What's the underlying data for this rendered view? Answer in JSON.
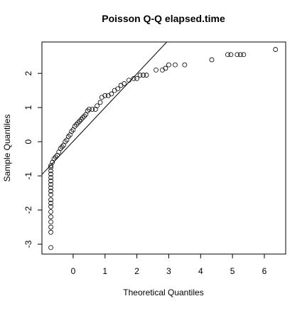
{
  "chart_data": {
    "type": "scatter",
    "title": "Poisson Q-Q elapsed.time",
    "x_label": "Theoretical Quantiles",
    "y_label": "Sample Quantiles",
    "xlim": [
      -0.98,
      6.67
    ],
    "ylim": [
      -3.29,
      2.92
    ],
    "xticks": [
      0,
      1,
      2,
      3,
      4,
      5,
      6
    ],
    "yticks": [
      -3,
      -2,
      -1,
      0,
      1,
      2
    ],
    "reference_line": {
      "intercept": 0.01,
      "slope": 0.99
    },
    "x": [
      -0.7,
      -0.7,
      -0.7,
      -0.7,
      -0.7,
      -0.7,
      -0.7,
      -0.7,
      -0.7,
      -0.7,
      -0.7,
      -0.7,
      -0.7,
      -0.7,
      -0.7,
      -0.7,
      -0.7,
      -0.7,
      -0.7,
      -0.65,
      -0.6,
      -0.55,
      -0.5,
      -0.45,
      -0.4,
      -0.35,
      -0.3,
      -0.25,
      -0.2,
      -0.15,
      -0.1,
      -0.05,
      0,
      0.05,
      0.1,
      0.15,
      0.2,
      0.25,
      0.3,
      0.35,
      0.4,
      0.45,
      0.5,
      0.6,
      0.7,
      0.75,
      0.85,
      0.9,
      1.0,
      1.1,
      1.2,
      1.3,
      1.4,
      1.5,
      1.6,
      1.75,
      1.9,
      2.0,
      2.1,
      2.2,
      2.3,
      2.6,
      2.8,
      2.9,
      3.0,
      3.2,
      3.5,
      4.35,
      4.85,
      4.95,
      5.15,
      5.25,
      5.35,
      6.35
    ],
    "values": [
      -3.1,
      -2.65,
      -2.5,
      -2.35,
      -2.2,
      -2.05,
      -1.9,
      -1.8,
      -1.7,
      -1.55,
      -1.45,
      -1.35,
      -1.25,
      -1.15,
      -1.05,
      -0.95,
      -0.85,
      -0.75,
      -0.7,
      -0.6,
      -0.5,
      -0.45,
      -0.4,
      -0.3,
      -0.2,
      -0.15,
      -0.1,
      0,
      0.05,
      0.15,
      0.2,
      0.3,
      0.35,
      0.45,
      0.5,
      0.55,
      0.6,
      0.65,
      0.7,
      0.75,
      0.8,
      0.9,
      0.95,
      0.95,
      0.95,
      1.05,
      1.15,
      1.3,
      1.35,
      1.35,
      1.4,
      1.5,
      1.55,
      1.65,
      1.7,
      1.8,
      1.85,
      1.85,
      1.95,
      1.95,
      1.95,
      2.1,
      2.1,
      2.15,
      2.25,
      2.25,
      2.25,
      2.4,
      2.55,
      2.55,
      2.55,
      2.55,
      2.55,
      2.7
    ]
  }
}
